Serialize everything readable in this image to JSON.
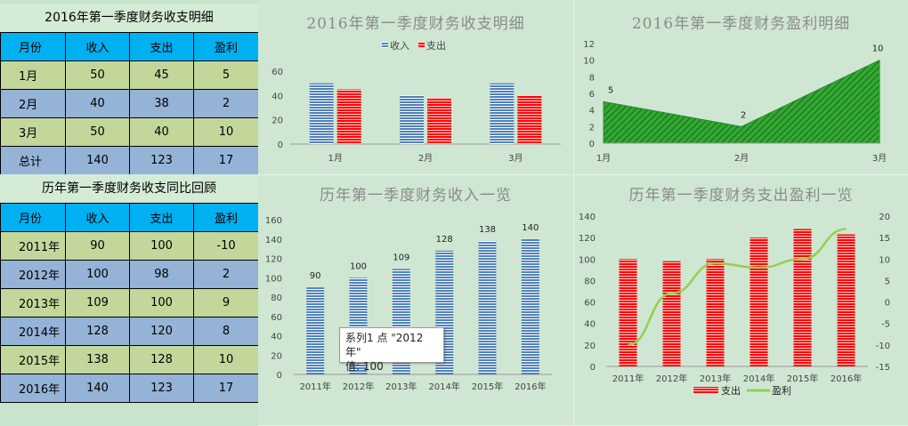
{
  "table1": {
    "title": "2016年第一季度财务收支明细",
    "headers": [
      "月份",
      "收入",
      "支出",
      "盈利"
    ],
    "rows": [
      [
        "1月",
        "50",
        "45",
        "5"
      ],
      [
        "2月",
        "40",
        "38",
        "2"
      ],
      [
        "3月",
        "50",
        "40",
        "10"
      ],
      [
        "总计",
        "140",
        "123",
        "17"
      ]
    ]
  },
  "table2": {
    "title": "历年第一季度财务收支同比回顾",
    "headers": [
      "月份",
      "收入",
      "支出",
      "盈利"
    ],
    "rows": [
      [
        "2011年",
        "90",
        "100",
        "-10"
      ],
      [
        "2012年",
        "100",
        "98",
        "2"
      ],
      [
        "2013年",
        "109",
        "100",
        "9"
      ],
      [
        "2014年",
        "128",
        "120",
        "8"
      ],
      [
        "2015年",
        "138",
        "128",
        "10"
      ],
      [
        "2016年",
        "140",
        "123",
        "17"
      ]
    ]
  },
  "tooltip": {
    "line1": "系列1 点 \"2012年\"",
    "line2": "值: 100"
  },
  "colors": {
    "income": "#4f81bd",
    "expense": "#ff0000",
    "profit_area": "#33aa33",
    "profit_line": "#92d050"
  },
  "chart_data": [
    {
      "type": "bar",
      "title": "2016年第一季度财务收支明细",
      "categories": [
        "1月",
        "2月",
        "3月"
      ],
      "series": [
        {
          "name": "收入",
          "values": [
            50,
            40,
            50
          ]
        },
        {
          "name": "支出",
          "values": [
            45,
            38,
            40
          ]
        }
      ],
      "ylim": [
        0,
        60
      ],
      "yticks": [
        0,
        20,
        40,
        60
      ],
      "legend": "top"
    },
    {
      "type": "area",
      "title": "2016年第一季度财务盈利明细",
      "categories": [
        "1月",
        "2月",
        "3月"
      ],
      "values": [
        5,
        2,
        10
      ],
      "ylim": [
        0,
        12
      ],
      "yticks": [
        0,
        2,
        4,
        6,
        8,
        10,
        12
      ]
    },
    {
      "type": "bar",
      "title": "历年第一季度财务收入一览",
      "categories": [
        "2011年",
        "2012年",
        "2013年",
        "2014年",
        "2015年",
        "2016年"
      ],
      "values": [
        90,
        100,
        109,
        128,
        138,
        140
      ],
      "ylim": [
        0,
        160
      ],
      "yticks": [
        0,
        20,
        40,
        60,
        80,
        100,
        120,
        140,
        160
      ]
    },
    {
      "type": "bar",
      "title": "历年第一季度财务支出盈利一览",
      "categories": [
        "2011年",
        "2012年",
        "2013年",
        "2014年",
        "2015年",
        "2016年"
      ],
      "series": [
        {
          "name": "支出",
          "type": "bar",
          "values": [
            100,
            98,
            100,
            120,
            128,
            123
          ]
        },
        {
          "name": "盈利",
          "type": "line",
          "values": [
            -10,
            2,
            9,
            8,
            10,
            17
          ]
        }
      ],
      "ylim": [
        0,
        140
      ],
      "yticks": [
        0,
        20,
        40,
        60,
        80,
        100,
        120,
        140
      ],
      "y2lim": [
        -15,
        20
      ],
      "y2ticks": [
        -15,
        -10,
        -5,
        0,
        5,
        10,
        15,
        20
      ],
      "legend": "bottom"
    }
  ]
}
